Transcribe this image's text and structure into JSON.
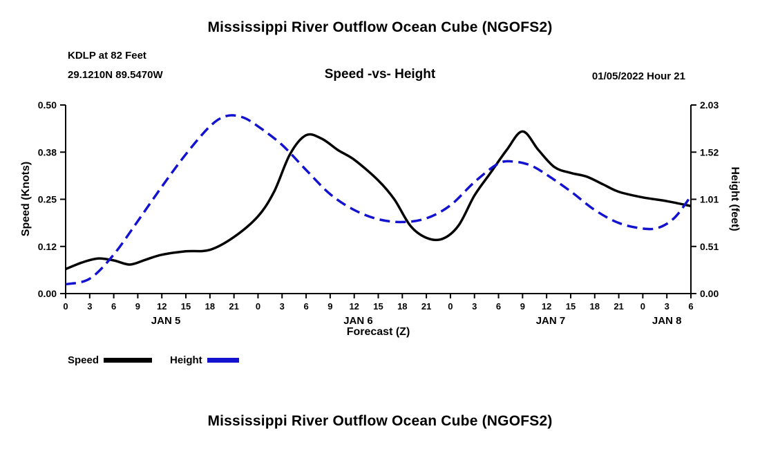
{
  "page": {
    "top_title": "Mississippi River Outflow Ocean Cube (NGOFS2)",
    "bottom_title": "Mississippi River Outflow Ocean Cube (NGOFS2)"
  },
  "chart_data": {
    "type": "line",
    "title": "Speed -vs- Height",
    "station": "KDLP at 82 Feet",
    "location": "29.1210N 89.5470W",
    "timestamp": "01/05/2022 Hour 21",
    "xlabel": "Forecast (Z)",
    "x_axis": {
      "hour_max": 78,
      "tick_hours": [
        0,
        3,
        6,
        9,
        12,
        15,
        18,
        21,
        24,
        27,
        30,
        33,
        36,
        39,
        42,
        45,
        48,
        51,
        54,
        57,
        60,
        63,
        66,
        69,
        72,
        75,
        78
      ],
      "tick_labels": [
        "0",
        "3",
        "6",
        "9",
        "12",
        "15",
        "18",
        "21",
        "0",
        "3",
        "6",
        "9",
        "12",
        "15",
        "18",
        "21",
        "0",
        "3",
        "6",
        "9",
        "12",
        "15",
        "18",
        "21",
        "0",
        "3",
        "6"
      ],
      "day_labels": [
        {
          "label": "JAN 5",
          "hour": 12.5
        },
        {
          "label": "JAN 6",
          "hour": 36.5
        },
        {
          "label": "JAN 7",
          "hour": 60.5
        },
        {
          "label": "JAN 8",
          "hour": 75
        }
      ]
    },
    "y_left": {
      "label": "Speed (Knots)",
      "min": 0,
      "max": 0.5,
      "ticks": [
        "0.00",
        "0.12",
        "0.25",
        "0.38",
        "0.50"
      ]
    },
    "y_right": {
      "label": "Height (feet)",
      "min": 0,
      "max": 2.03,
      "ticks": [
        "0.00",
        "0.51",
        "1.01",
        "1.52",
        "2.03"
      ]
    },
    "legend": [
      {
        "name": "Speed",
        "color": "#000000",
        "style": "solid"
      },
      {
        "name": "Height",
        "color": "#1313cf",
        "style": "dashed"
      }
    ],
    "series": [
      {
        "name": "Speed",
        "axis": "left",
        "color": "#000000",
        "style": "solid",
        "x": [
          0,
          2,
          4,
          6,
          8,
          10,
          12,
          15,
          18,
          21,
          24,
          26,
          28,
          30,
          32,
          34,
          36,
          39,
          41,
          43,
          45,
          47,
          49,
          51,
          53,
          55,
          57,
          59,
          61,
          63,
          65,
          67,
          69,
          72,
          75,
          78
        ],
        "values": [
          0.065,
          0.082,
          0.093,
          0.088,
          0.077,
          0.09,
          0.103,
          0.112,
          0.116,
          0.15,
          0.205,
          0.27,
          0.37,
          0.42,
          0.41,
          0.38,
          0.355,
          0.3,
          0.25,
          0.18,
          0.148,
          0.145,
          0.18,
          0.26,
          0.32,
          0.38,
          0.43,
          0.38,
          0.335,
          0.32,
          0.31,
          0.29,
          0.27,
          0.255,
          0.245,
          0.232
        ]
      },
      {
        "name": "Height",
        "axis": "right",
        "color": "#1313cf",
        "style": "dashed",
        "x": [
          0,
          3,
          6,
          9,
          12,
          15,
          18,
          20,
          22,
          24,
          27,
          30,
          33,
          36,
          39,
          42,
          45,
          48,
          51,
          54,
          56,
          58,
          60,
          63,
          66,
          69,
          72,
          74,
          76,
          78
        ],
        "values": [
          0.1,
          0.16,
          0.42,
          0.78,
          1.15,
          1.5,
          1.8,
          1.91,
          1.9,
          1.8,
          1.6,
          1.33,
          1.07,
          0.9,
          0.8,
          0.77,
          0.81,
          0.95,
          1.2,
          1.4,
          1.42,
          1.38,
          1.28,
          1.1,
          0.9,
          0.76,
          0.7,
          0.71,
          0.82,
          1.05
        ]
      }
    ]
  }
}
